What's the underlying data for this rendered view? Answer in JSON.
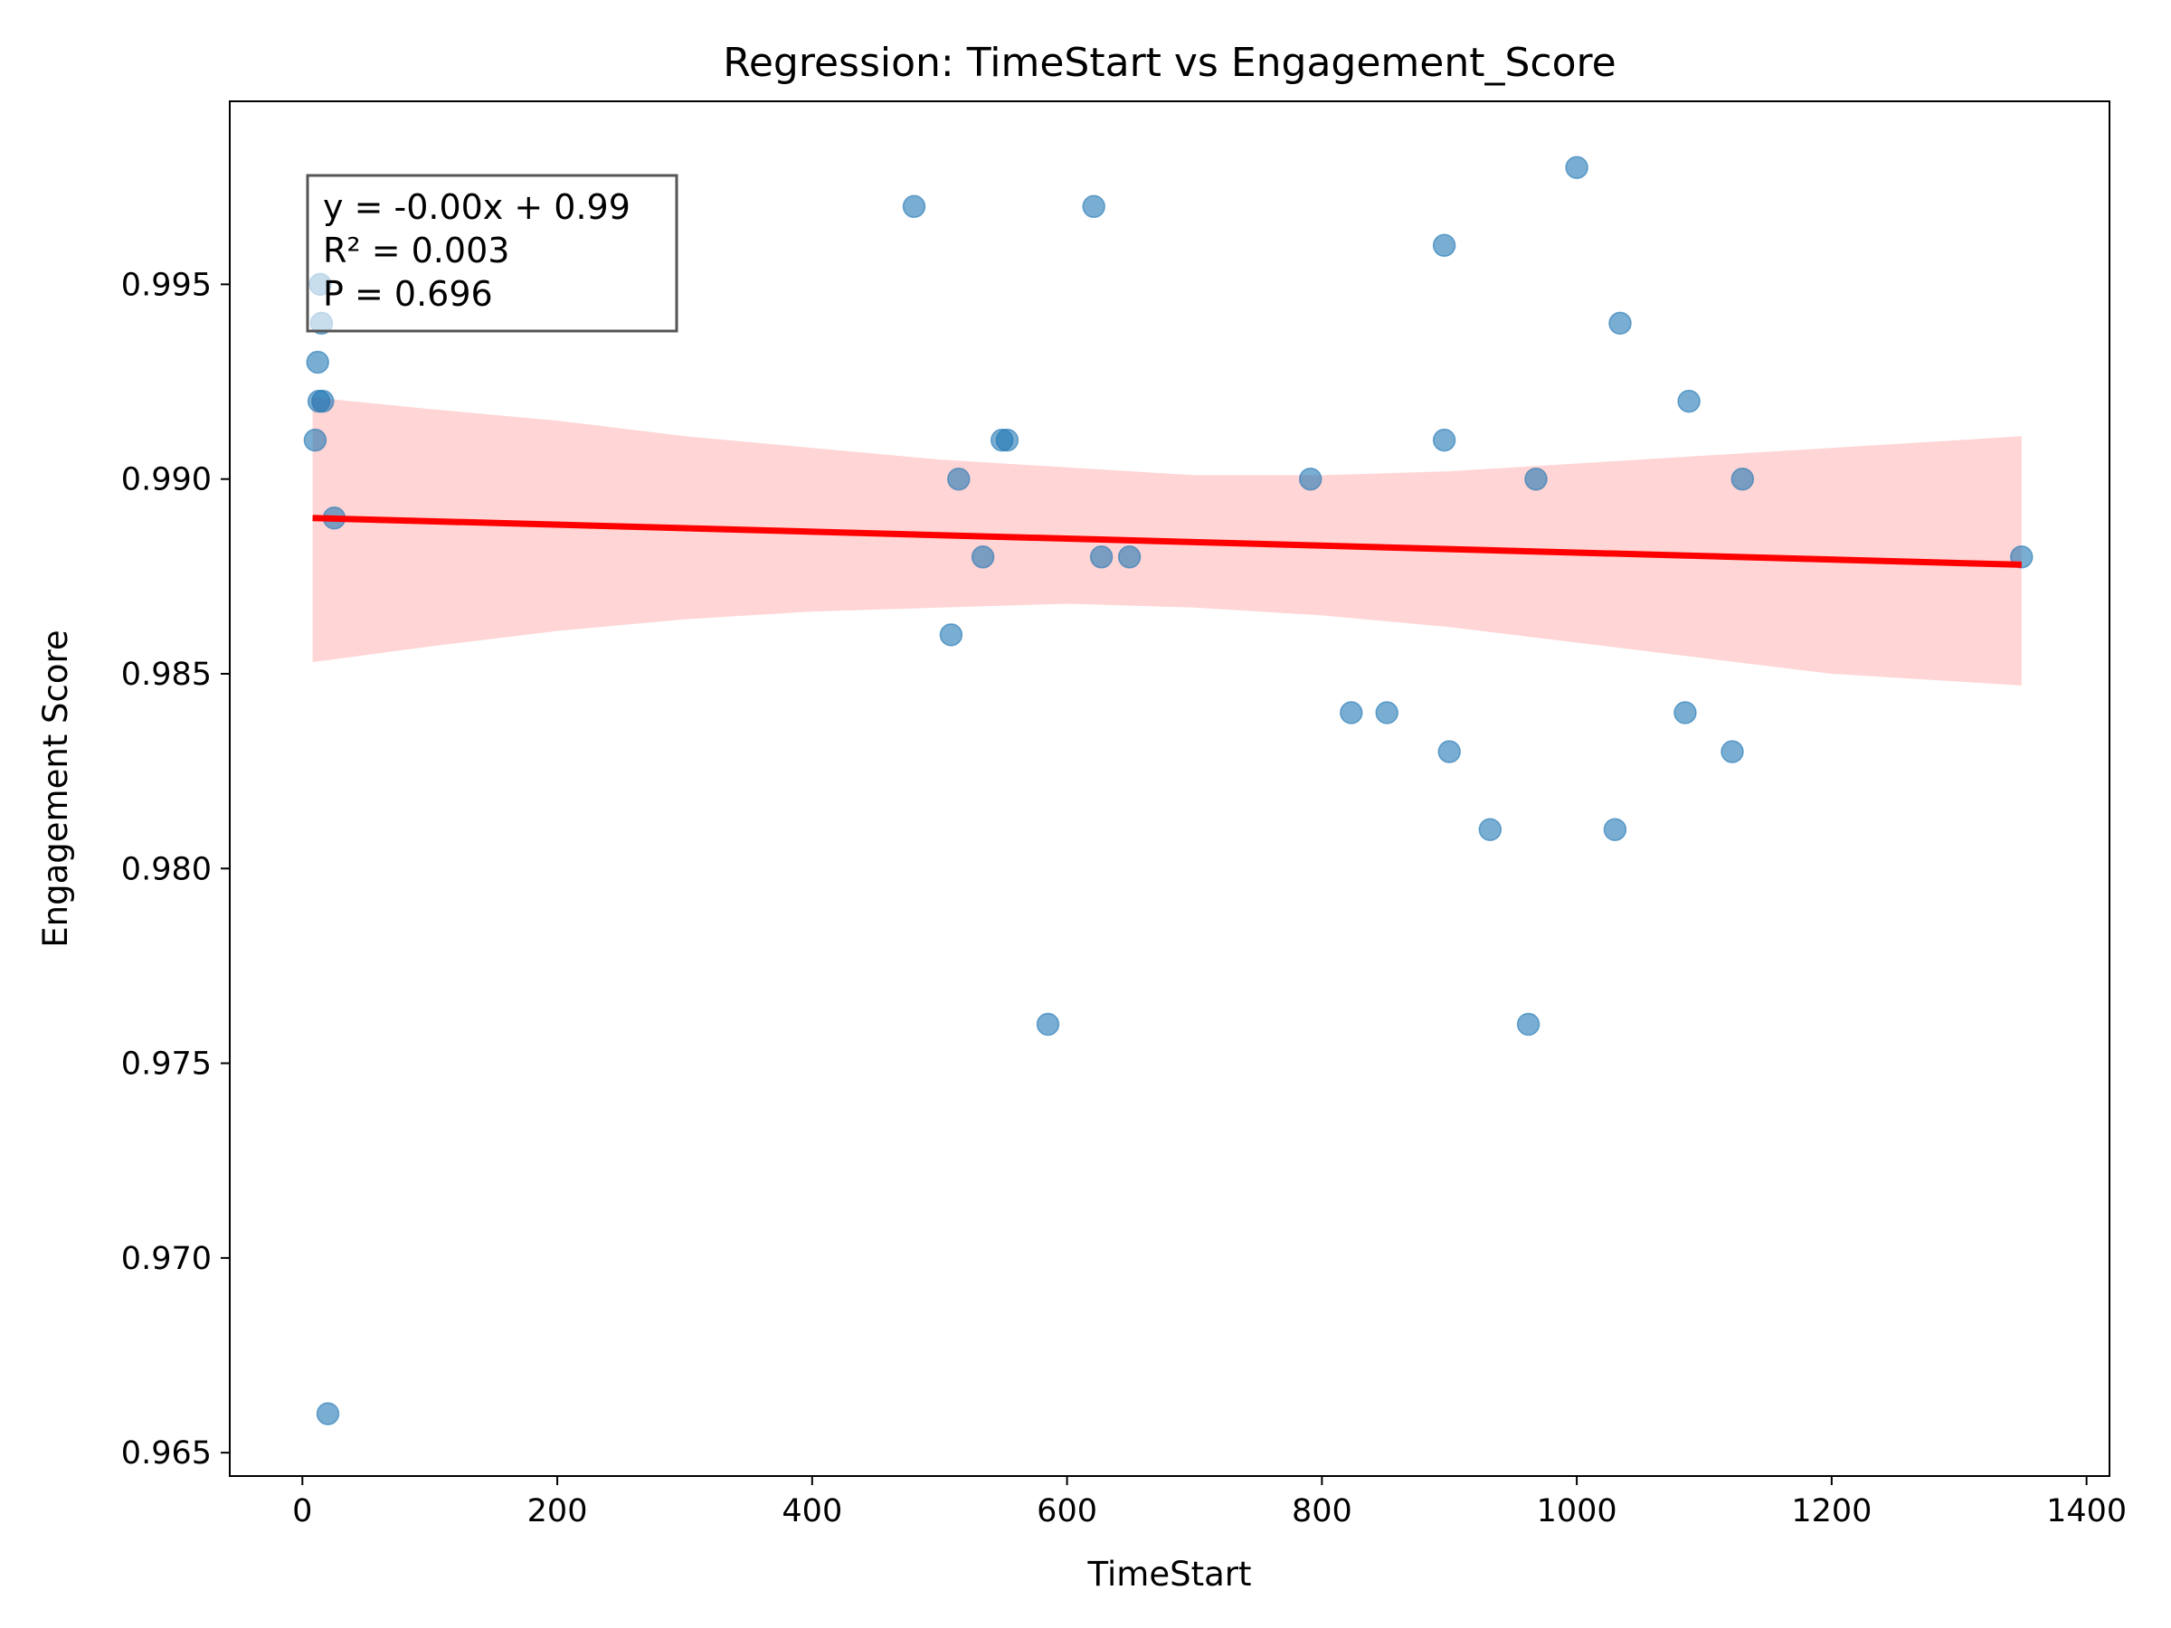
{
  "chart_data": {
    "type": "scatter",
    "title": "Regression: TimeStart vs Engagement_Score",
    "xlabel": "TimeStart",
    "ylabel": "Engagement Score",
    "xlim": [
      -57,
      1418
    ],
    "ylim": [
      0.9644,
      0.9997
    ],
    "xticks": [
      0,
      200,
      400,
      600,
      800,
      1000,
      1200,
      1400
    ],
    "yticks": [
      0.965,
      0.97,
      0.975,
      0.98,
      0.985,
      0.99,
      0.995
    ],
    "xtick_labels": [
      "0",
      "200",
      "400",
      "600",
      "800",
      "1000",
      "1200",
      "1400"
    ],
    "ytick_labels": [
      "0.965",
      "0.970",
      "0.975",
      "0.980",
      "0.985",
      "0.990",
      "0.995"
    ],
    "grid": false,
    "points": [
      {
        "x": 10,
        "y": 0.991
      },
      {
        "x": 12,
        "y": 0.993
      },
      {
        "x": 13,
        "y": 0.992
      },
      {
        "x": 14,
        "y": 0.995
      },
      {
        "x": 15,
        "y": 0.994
      },
      {
        "x": 16,
        "y": 0.992
      },
      {
        "x": 20,
        "y": 0.966
      },
      {
        "x": 25,
        "y": 0.989
      },
      {
        "x": 480,
        "y": 0.997
      },
      {
        "x": 509,
        "y": 0.986
      },
      {
        "x": 515,
        "y": 0.99
      },
      {
        "x": 534,
        "y": 0.988
      },
      {
        "x": 549,
        "y": 0.991
      },
      {
        "x": 553,
        "y": 0.991
      },
      {
        "x": 585,
        "y": 0.976
      },
      {
        "x": 621,
        "y": 0.997
      },
      {
        "x": 627,
        "y": 0.988
      },
      {
        "x": 649,
        "y": 0.988
      },
      {
        "x": 791,
        "y": 0.99
      },
      {
        "x": 823,
        "y": 0.984
      },
      {
        "x": 851,
        "y": 0.984
      },
      {
        "x": 896,
        "y": 0.996
      },
      {
        "x": 896,
        "y": 0.991
      },
      {
        "x": 900,
        "y": 0.983
      },
      {
        "x": 932,
        "y": 0.981
      },
      {
        "x": 962,
        "y": 0.976
      },
      {
        "x": 968,
        "y": 0.99
      },
      {
        "x": 1000,
        "y": 0.998
      },
      {
        "x": 1030,
        "y": 0.981
      },
      {
        "x": 1034,
        "y": 0.994
      },
      {
        "x": 1085,
        "y": 0.984
      },
      {
        "x": 1088,
        "y": 0.992
      },
      {
        "x": 1122,
        "y": 0.983
      },
      {
        "x": 1130,
        "y": 0.99
      },
      {
        "x": 1349,
        "y": 0.988
      }
    ],
    "regression_line": {
      "x": [
        8,
        1349
      ],
      "y": [
        0.989,
        0.9878
      ]
    },
    "confidence_band": {
      "x": [
        8,
        100,
        200,
        300,
        400,
        500,
        600,
        700,
        800,
        900,
        1000,
        1100,
        1200,
        1300,
        1349
      ],
      "lower": [
        0.9853,
        0.9857,
        0.9861,
        0.9864,
        0.9866,
        0.9867,
        0.9868,
        0.9867,
        0.9865,
        0.9862,
        0.9858,
        0.9854,
        0.985,
        0.9848,
        0.9847
      ],
      "upper": [
        0.9921,
        0.9918,
        0.9915,
        0.9911,
        0.9908,
        0.9905,
        0.9903,
        0.9901,
        0.9901,
        0.9902,
        0.9904,
        0.9906,
        0.9908,
        0.991,
        0.9911
      ]
    },
    "annotation": {
      "lines": [
        "y = -0.00x + 0.99",
        "R² = 0.003",
        "P = 0.696"
      ],
      "placement": "top-left"
    },
    "colors": {
      "points": "#1f77b4",
      "line": "#ff0000",
      "band": "#ffb3b3"
    }
  }
}
